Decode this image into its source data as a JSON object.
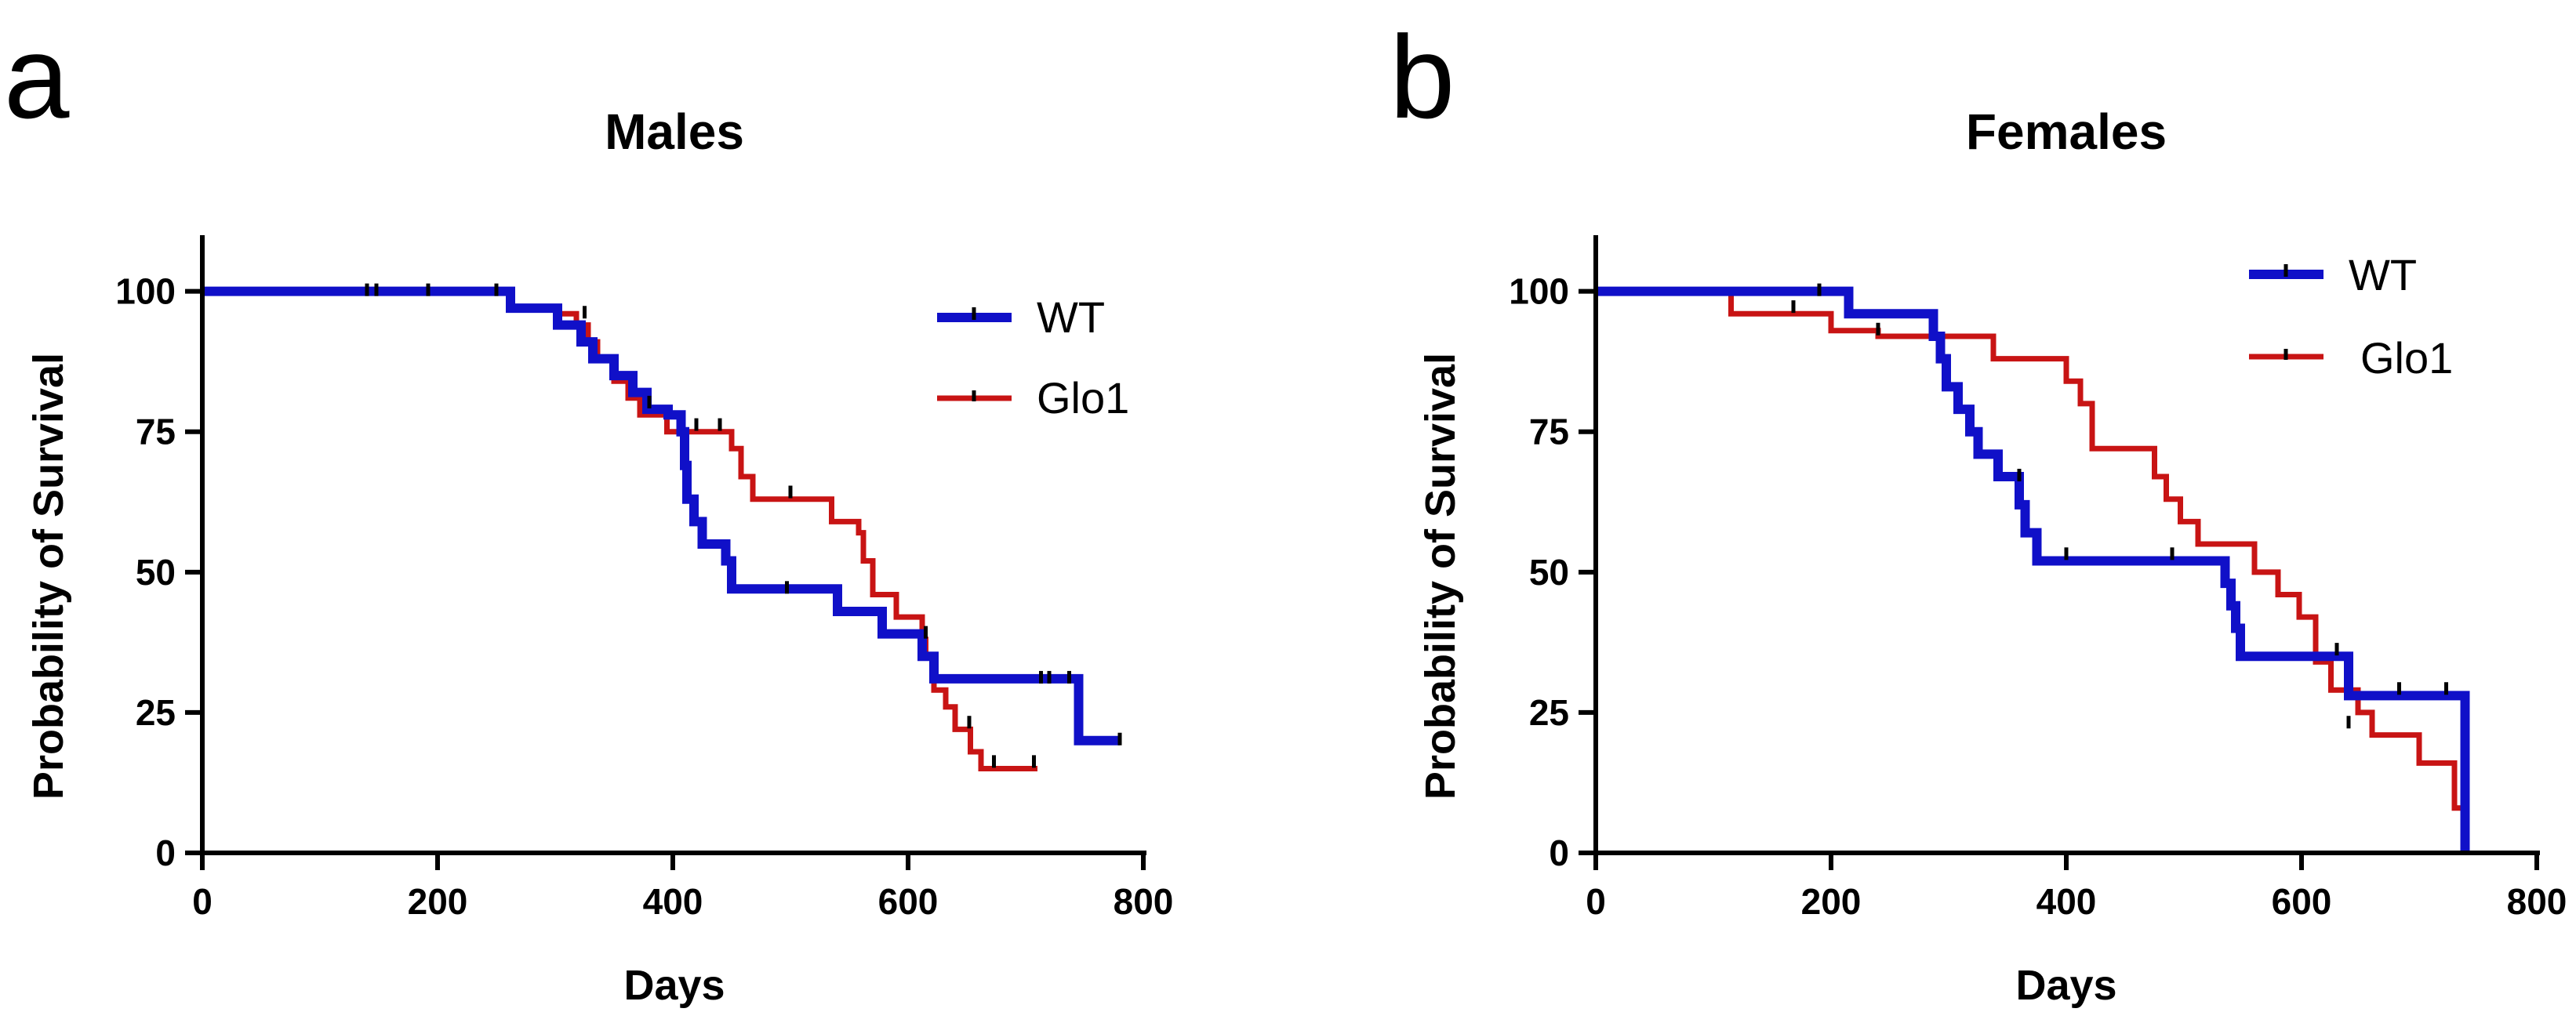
{
  "panels": [
    {
      "letter": "a",
      "chart_data": {
        "type": "line",
        "subtype": "kaplan-meier step",
        "title": "Males",
        "xlabel": "Days",
        "ylabel": "Probability of Survival",
        "xlim": [
          0,
          800
        ],
        "ylim": [
          0,
          110
        ],
        "xticks": [
          "0",
          "200",
          "400",
          "600",
          "800"
        ],
        "yticks": [
          "0",
          "25",
          "50",
          "75",
          "100"
        ],
        "legend_position": "top-right",
        "series": [
          {
            "name": "WT",
            "color": "#1010c8",
            "steps": [
              [
                0,
                100
              ],
              [
                262,
                97
              ],
              [
                302,
                94
              ],
              [
                322,
                91
              ],
              [
                332,
                88
              ],
              [
                350,
                85
              ],
              [
                366,
                82
              ],
              [
                378,
                79
              ],
              [
                396,
                78
              ],
              [
                407,
                75
              ],
              [
                410,
                69
              ],
              [
                412,
                63
              ],
              [
                418,
                59
              ],
              [
                425,
                55
              ],
              [
                445,
                52
              ],
              [
                450,
                47
              ],
              [
                540,
                43
              ],
              [
                578,
                39
              ],
              [
                612,
                35
              ],
              [
                622,
                31
              ],
              [
                745,
                20
              ],
              [
                780,
                20
              ]
            ],
            "censored": [
              [
                140,
                100
              ],
              [
                148,
                100
              ],
              [
                192,
                100
              ],
              [
                250,
                100
              ],
              [
                497,
                47
              ],
              [
                713,
                31
              ],
              [
                720,
                31
              ],
              [
                737,
                31
              ],
              [
                780,
                20
              ]
            ]
          },
          {
            "name": "Glo1",
            "color": "#c81414",
            "steps": [
              [
                0,
                100
              ],
              [
                262,
                97
              ],
              [
                302,
                96
              ],
              [
                318,
                94
              ],
              [
                328,
                91
              ],
              [
                336,
                88
              ],
              [
                350,
                84
              ],
              [
                362,
                81
              ],
              [
                372,
                78
              ],
              [
                395,
                75
              ],
              [
                405,
                75
              ],
              [
                438,
                75
              ],
              [
                450,
                72
              ],
              [
                458,
                67
              ],
              [
                468,
                63
              ],
              [
                535,
                59
              ],
              [
                558,
                57
              ],
              [
                562,
                52
              ],
              [
                570,
                46
              ],
              [
                590,
                42
              ],
              [
                612,
                38
              ],
              [
                615,
                35
              ],
              [
                622,
                29
              ],
              [
                632,
                26
              ],
              [
                640,
                22
              ],
              [
                653,
                18
              ],
              [
                662,
                15
              ],
              [
                710,
                15
              ]
            ],
            "censored": [
              [
                325,
                96
              ],
              [
                380,
                80
              ],
              [
                420,
                76
              ],
              [
                440,
                76
              ],
              [
                500,
                64
              ],
              [
                615,
                39
              ],
              [
                652,
                23
              ],
              [
                673,
                16
              ],
              [
                707,
                16
              ]
            ]
          }
        ]
      }
    },
    {
      "letter": "b",
      "chart_data": {
        "type": "line",
        "subtype": "kaplan-meier step",
        "title": "Females",
        "xlabel": "Days",
        "ylabel": "Probability of Survival",
        "xlim": [
          0,
          800
        ],
        "ylim": [
          0,
          110
        ],
        "xticks": [
          "0",
          "200",
          "400",
          "600",
          "800"
        ],
        "yticks": [
          "0",
          "25",
          "50",
          "75",
          "100"
        ],
        "legend_position": "top-right",
        "series": [
          {
            "name": "WT",
            "color": "#1010c8",
            "steps": [
              [
                0,
                100
              ],
              [
                215,
                96
              ],
              [
                287,
                92
              ],
              [
                293,
                88
              ],
              [
                298,
                83
              ],
              [
                308,
                79
              ],
              [
                318,
                75
              ],
              [
                325,
                71
              ],
              [
                342,
                67
              ],
              [
                360,
                62
              ],
              [
                365,
                57
              ],
              [
                375,
                52
              ],
              [
                535,
                48
              ],
              [
                540,
                44
              ],
              [
                544,
                40
              ],
              [
                548,
                35
              ],
              [
                640,
                28
              ],
              [
                739,
                28
              ],
              [
                739,
                0
              ]
            ],
            "censored": [
              [
                190,
                100
              ],
              [
                360,
                67
              ],
              [
                400,
                53
              ],
              [
                490,
                53
              ],
              [
                630,
                36
              ],
              [
                683,
                29
              ],
              [
                723,
                29
              ]
            ]
          },
          {
            "name": "Glo1",
            "color": "#c81414",
            "steps": [
              [
                0,
                100
              ],
              [
                115,
                96
              ],
              [
                200,
                93
              ],
              [
                240,
                92
              ],
              [
                338,
                88
              ],
              [
                400,
                84
              ],
              [
                412,
                80
              ],
              [
                422,
                72
              ],
              [
                475,
                67
              ],
              [
                485,
                63
              ],
              [
                497,
                59
              ],
              [
                512,
                55
              ],
              [
                560,
                50
              ],
              [
                580,
                46
              ],
              [
                598,
                42
              ],
              [
                612,
                34
              ],
              [
                625,
                29
              ],
              [
                648,
                25
              ],
              [
                660,
                21
              ],
              [
                700,
                16
              ],
              [
                730,
                8
              ],
              [
                740,
                8
              ]
            ],
            "censored": [
              [
                168,
                97
              ],
              [
                240,
                93
              ],
              [
                640,
                23
              ]
            ]
          }
        ]
      }
    }
  ]
}
